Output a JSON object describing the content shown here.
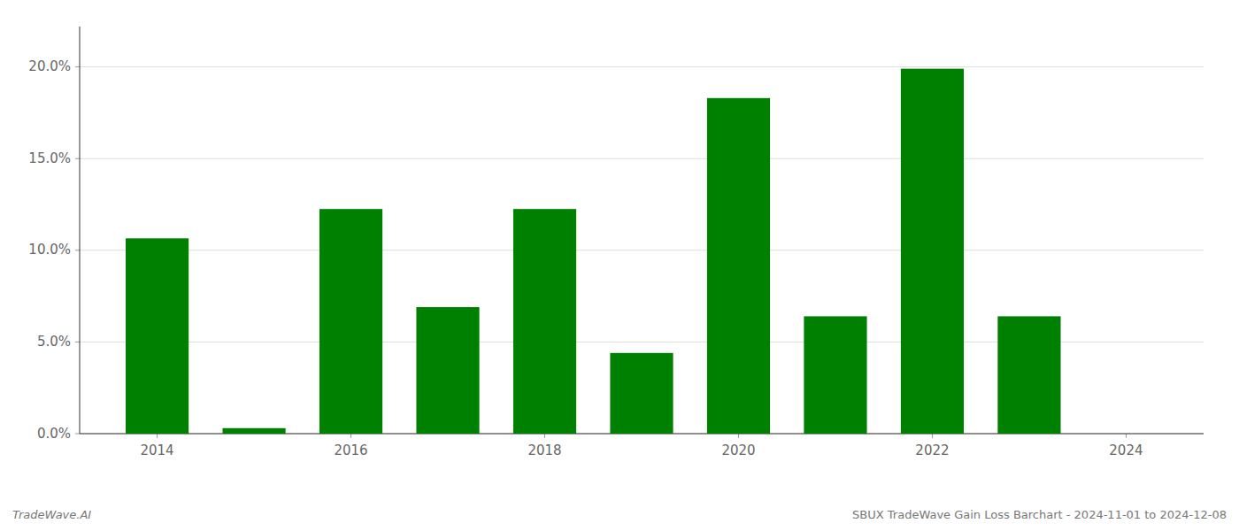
{
  "chart_data": {
    "type": "bar",
    "x": [
      2014,
      2015,
      2016,
      2017,
      2018,
      2019,
      2020,
      2021,
      2022,
      2023,
      2024
    ],
    "values": [
      0.1065,
      0.003,
      0.1225,
      0.069,
      0.1225,
      0.044,
      0.183,
      0.064,
      0.199,
      0.064,
      0.0
    ],
    "color": "#008000",
    "xlim": [
      2013.2,
      2024.8
    ],
    "xticks": [
      2014,
      2016,
      2018,
      2020,
      2022,
      2024
    ],
    "ylim": [
      0,
      0.222
    ],
    "yticks": [
      {
        "value": 0.0,
        "label": "0.0%"
      },
      {
        "value": 0.05,
        "label": "5.0%"
      },
      {
        "value": 0.1,
        "label": "10.0%"
      },
      {
        "value": 0.15,
        "label": "15.0%"
      },
      {
        "value": 0.2,
        "label": "20.0%"
      }
    ],
    "grid": true,
    "annotations": [
      {
        "text": "TradeWave.AI"
      },
      {
        "text": "SBUX TradeWave Gain Loss Barchart - 2024-11-01 to 2024-12-08"
      }
    ]
  }
}
